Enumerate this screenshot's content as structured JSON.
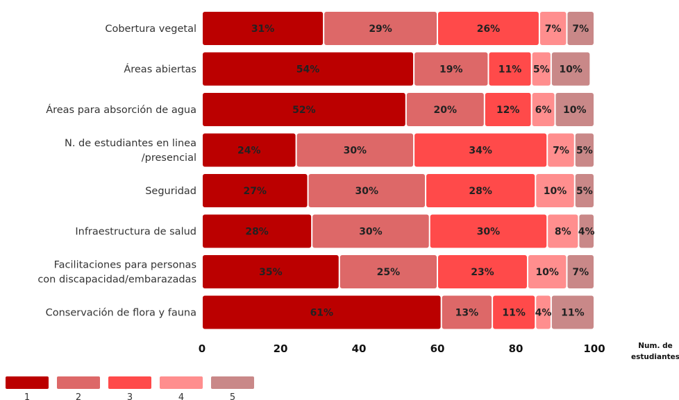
{
  "chart_data": {
    "type": "bar",
    "orientation": "horizontal",
    "stacked": true,
    "categories": [
      "Cobertura vegetal",
      "Áreas abiertas",
      "Áreas para absorción de  agua",
      "N. de estudiantes en linea\n/presencial",
      "Seguridad",
      "Infraestructura de salud",
      "Facilitaciones para personas\ncon discapacidad/embarazadas",
      "Conservación de flora y fauna"
    ],
    "series": [
      {
        "name": "1",
        "color": "#bb0000",
        "values": [
          31,
          54,
          52,
          24,
          27,
          28,
          35,
          61
        ]
      },
      {
        "name": "2",
        "color": "#dd6868",
        "values": [
          29,
          19,
          20,
          30,
          30,
          30,
          25,
          13
        ]
      },
      {
        "name": "3",
        "color": "#ff4a4a",
        "values": [
          26,
          11,
          12,
          34,
          28,
          30,
          23,
          11
        ]
      },
      {
        "name": "4",
        "color": "#ff8e8e",
        "values": [
          7,
          5,
          6,
          7,
          10,
          8,
          10,
          4
        ]
      },
      {
        "name": "5",
        "color": "#c98888",
        "values": [
          7,
          10,
          10,
          5,
          5,
          4,
          7,
          11
        ]
      }
    ],
    "data_labels": [
      [
        "31%",
        "29%",
        "26%",
        "7%",
        "7%"
      ],
      [
        "54%",
        "19%",
        "11%",
        "5%",
        "10%"
      ],
      [
        "52%",
        "20%",
        "12%",
        "6%",
        "10%"
      ],
      [
        "24%",
        "30%",
        "34%",
        "7%",
        "5%"
      ],
      [
        "27%",
        "30%",
        "28%",
        "10%",
        "5%"
      ],
      [
        "28%",
        "30%",
        "30%",
        "8%",
        "4%"
      ],
      [
        "35%",
        "25%",
        "23%",
        "10%",
        "7%"
      ],
      [
        "61%",
        "13%",
        "11%",
        "4%",
        "11%"
      ]
    ],
    "xlim": [
      0,
      100
    ],
    "xticks": [
      0,
      20,
      40,
      60,
      80,
      100
    ],
    "xlabel": "Num. de\nestudiantes",
    "ylabel": "",
    "title": "",
    "grid": false,
    "legend": {
      "position": "bottom-left",
      "entries": [
        "1",
        "2",
        "3",
        "4",
        "5"
      ]
    }
  }
}
